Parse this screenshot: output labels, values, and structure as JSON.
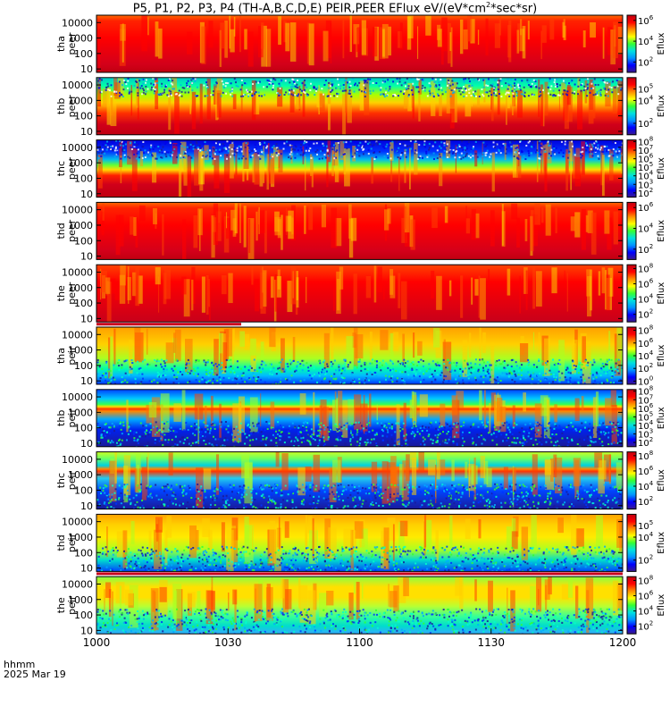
{
  "chart_data": {
    "type": "heatmap",
    "title": {
      "prefix": "P5, P1, P2, P3, P4 (TH-A,B,C,D,E) PEIR,PEER EFlux eV/(eV*cm",
      "exponent": "2",
      "suffix": "*sec*sr)"
    },
    "time_axis": {
      "unit_label": "hhmm",
      "date_label": "2025 Mar 19",
      "ticks": [
        "1000",
        "1030",
        "1100",
        "1130",
        "1200"
      ],
      "range_minutes": [
        0,
        120
      ]
    },
    "energy_ticks": [
      "10000",
      "1000",
      "100",
      "10"
    ],
    "colorbar_label": "Eflux",
    "panels": [
      {
        "probe": "tha",
        "species": "peer",
        "ylim": [
          6,
          30000
        ],
        "cbar_ticks": [
          "6",
          "4",
          "2"
        ],
        "cbar_range": [
          1,
          6.5
        ]
      },
      {
        "probe": "thb",
        "species": "peer",
        "ylim": [
          6,
          30000
        ],
        "cbar_ticks": [
          "5",
          "4",
          "2"
        ],
        "cbar_range": [
          1,
          6
        ]
      },
      {
        "probe": "thc",
        "species": "peer",
        "ylim": [
          6,
          30000
        ],
        "cbar_ticks": [
          "8",
          "7",
          "6",
          "5",
          "4",
          "3",
          "2"
        ],
        "cbar_range": [
          1.5,
          8.2
        ]
      },
      {
        "probe": "thd",
        "species": "peer",
        "ylim": [
          6,
          30000
        ],
        "cbar_ticks": [
          "6",
          "4",
          "2"
        ],
        "cbar_range": [
          1,
          6.5
        ]
      },
      {
        "probe": "the",
        "species": "peer",
        "ylim": [
          6,
          30000
        ],
        "cbar_ticks": [
          "8",
          "6",
          "4",
          "2"
        ],
        "cbar_range": [
          1,
          8.5
        ]
      },
      {
        "probe": "tha",
        "species": "peir",
        "ylim": [
          6,
          30000
        ],
        "cbar_ticks": [
          "8",
          "6",
          "4",
          "2",
          "0"
        ],
        "cbar_range": [
          -0.5,
          8.5
        ]
      },
      {
        "probe": "thb",
        "species": "peir",
        "ylim": [
          6,
          30000
        ],
        "cbar_ticks": [
          "8",
          "7",
          "6",
          "5",
          "4",
          "3",
          "2"
        ],
        "cbar_range": [
          1.5,
          8.2
        ]
      },
      {
        "probe": "thc",
        "species": "peir",
        "ylim": [
          6,
          30000
        ],
        "cbar_ticks": [
          "8",
          "6",
          "4",
          "2"
        ],
        "cbar_range": [
          1,
          8.5
        ]
      },
      {
        "probe": "thd",
        "species": "peir",
        "ylim": [
          6,
          30000
        ],
        "cbar_ticks": [
          "5",
          "4",
          "2"
        ],
        "cbar_range": [
          1,
          6
        ]
      },
      {
        "probe": "the",
        "species": "peir",
        "ylim": [
          6,
          30000
        ],
        "cbar_ticks": [
          "8",
          "6",
          "4",
          "2"
        ],
        "cbar_range": [
          1,
          8.5
        ]
      }
    ],
    "colors": {
      "colormap": [
        "#3b1b8c",
        "#0000ff",
        "#0095ff",
        "#00e0e0",
        "#33ff33",
        "#ffff00",
        "#ff8c00",
        "#ff0000",
        "#c00010"
      ],
      "flag_bar": "#c8001e",
      "background": "#ffffff"
    }
  }
}
